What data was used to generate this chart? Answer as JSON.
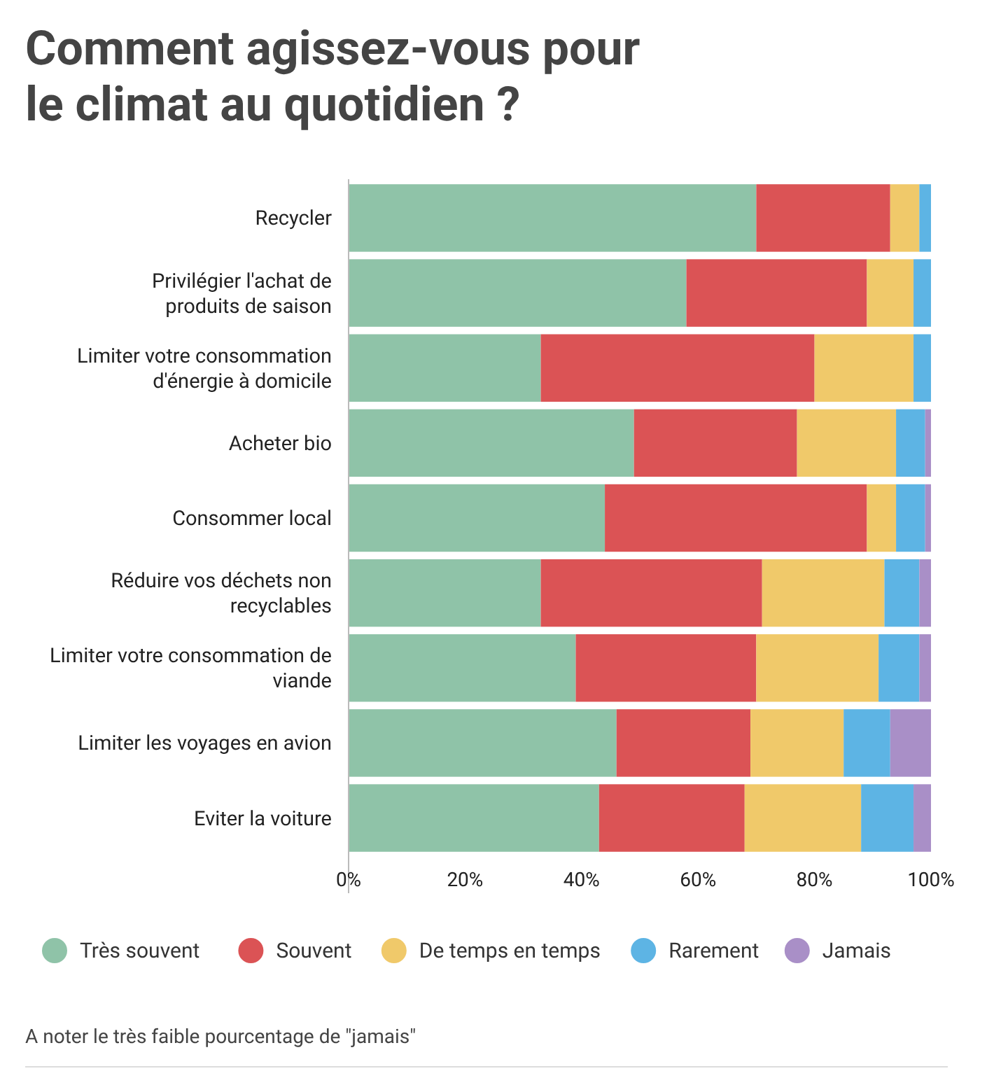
{
  "chart_data": {
    "type": "bar",
    "orientation": "horizontal",
    "stacked": true,
    "title": "Comment agissez-vous pour le climat au quotidien ?",
    "categories": [
      "Recycler",
      "Privilégier l'achat de produits de saison",
      "Limiter votre consommation d'énergie à domicile",
      "Acheter bio",
      "Consommer local",
      "Réduire vos déchets non recyclables",
      "Limiter votre consommation de viande",
      "Limiter les voyages en avion",
      "Eviter la voiture"
    ],
    "series": [
      {
        "name": "Très souvent",
        "color": "#8fc3a8",
        "values": [
          70,
          58,
          33,
          49,
          44,
          33,
          39,
          46,
          43
        ]
      },
      {
        "name": "Souvent",
        "color": "#db5355",
        "values": [
          23,
          31,
          47,
          28,
          45,
          38,
          31,
          23,
          25
        ]
      },
      {
        "name": "De temps en temps",
        "color": "#f0c96a",
        "values": [
          5,
          8,
          17,
          17,
          5,
          21,
          21,
          16,
          20
        ]
      },
      {
        "name": "Rarement",
        "color": "#5db4e4",
        "values": [
          2,
          3,
          3,
          5,
          5,
          6,
          7,
          8,
          9
        ]
      },
      {
        "name": "Jamais",
        "color": "#a98fc7",
        "values": [
          0,
          0,
          0,
          1,
          1,
          2,
          2,
          7,
          3
        ]
      }
    ],
    "xlim": [
      0,
      100
    ],
    "xticks": [
      {
        "value": 0,
        "label": "0%"
      },
      {
        "value": 20,
        "label": "20%"
      },
      {
        "value": 40,
        "label": "40%"
      },
      {
        "value": 60,
        "label": "60%"
      },
      {
        "value": 80,
        "label": "80%"
      },
      {
        "value": 100,
        "label": "100%"
      }
    ],
    "grid": false,
    "legend": "bottom",
    "annotations": [
      "A noter le très faible pourcentage de \"jamais\""
    ]
  }
}
